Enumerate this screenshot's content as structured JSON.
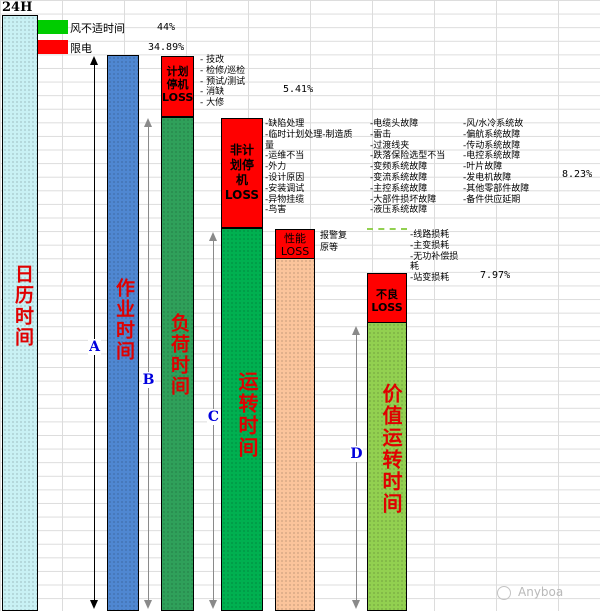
{
  "header": {
    "title": "24H"
  },
  "legend": [
    {
      "label": "风不适时间",
      "percent": "44%",
      "color": "#00cc00"
    },
    {
      "label": "限电",
      "percent": "34.89%",
      "color": "#ff0000"
    }
  ],
  "bars": {
    "calendar": "日历时间",
    "work": "作业时间",
    "load": "负荷时间",
    "run": "运转时间",
    "value": "价值运转时间"
  },
  "losses": {
    "planned": {
      "lines": [
        "计划",
        "停机",
        "LOSS"
      ],
      "percent": "5.41%",
      "items": "- 技改\n- 检修/巡检\n- 预试/测试\n- 消缺\n- 大修"
    },
    "unplanned": {
      "lines": [
        "非计",
        "划停",
        "机",
        "LOSS"
      ],
      "percent": "8.23%",
      "items_col1": "-缺陷处理\n-临时计划处理-制造质\n量\n-运维不当\n-外力\n-设计原因\n-安装调试\n-异物挂缆\n-鸟害",
      "items_col2": "-电缆头故障\n-雷击\n-过渡线夹\n-跌落保险选型不当\n-变频系统故障\n-变流系统故障\n-主控系统故障\n-大部件损坏故障\n-液压系统故障",
      "items_col3": "-风/水冷系统故\n-偏航系统故障\n-传动系统故障\n-电控系统故障\n-叶片故障\n-发电机故障\n-其他零部件故障\n-备件供应延期"
    },
    "performance": {
      "lines": [
        "性能",
        "LOSS"
      ],
      "items": "报警复\n原等"
    },
    "defect": {
      "lines": [
        "不良",
        "LOSS"
      ],
      "percent": "7.97%",
      "items": "-线路损耗\n-主变损耗\n-无功补偿损\n耗\n-站变损耗"
    }
  },
  "markers": [
    "A",
    "B",
    "C",
    "D"
  ],
  "watermark": "Anyboa"
}
